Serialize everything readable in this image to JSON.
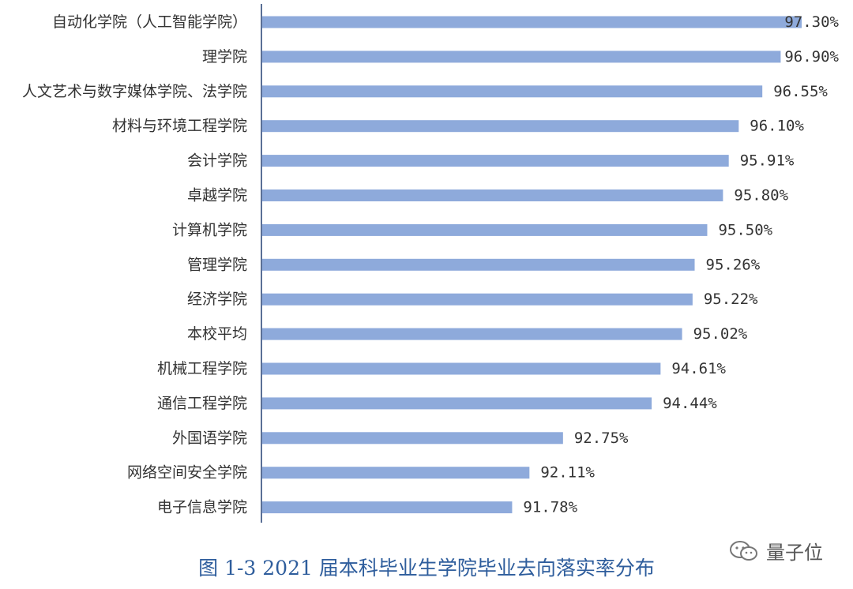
{
  "chart_data": {
    "type": "bar",
    "orientation": "horizontal",
    "categories": [
      "自动化学院（人工智能学院）",
      "理学院",
      "人文艺术与数字媒体学院、法学院",
      "材料与环境工程学院",
      "会计学院",
      "卓越学院",
      "计算机学院",
      "管理学院",
      "经济学院",
      "本校平均",
      "机械工程学院",
      "通信工程学院",
      "外国语学院",
      "网络空间安全学院",
      "电子信息学院"
    ],
    "values": [
      97.3,
      96.9,
      96.55,
      96.1,
      95.91,
      95.8,
      95.5,
      95.26,
      95.22,
      95.02,
      94.61,
      94.44,
      92.75,
      92.11,
      91.78
    ],
    "data_labels": [
      "97.30%",
      "96.90%",
      "96.55%",
      "96.10%",
      "95.91%",
      "95.80%",
      "95.50%",
      "95.26%",
      "95.22%",
      "95.02%",
      "94.61%",
      "94.44%",
      "92.75%",
      "92.11%",
      "91.78%"
    ],
    "title": "",
    "xlabel": "",
    "ylabel": "",
    "xlim": [
      87,
      97.3
    ],
    "grid": false,
    "bar_color": "#8eaadb"
  },
  "caption": "图 1-3 2021 届本科毕业生学院毕业去向落实率分布",
  "watermark": {
    "text": "量子位",
    "icon": "wechat-icon"
  }
}
